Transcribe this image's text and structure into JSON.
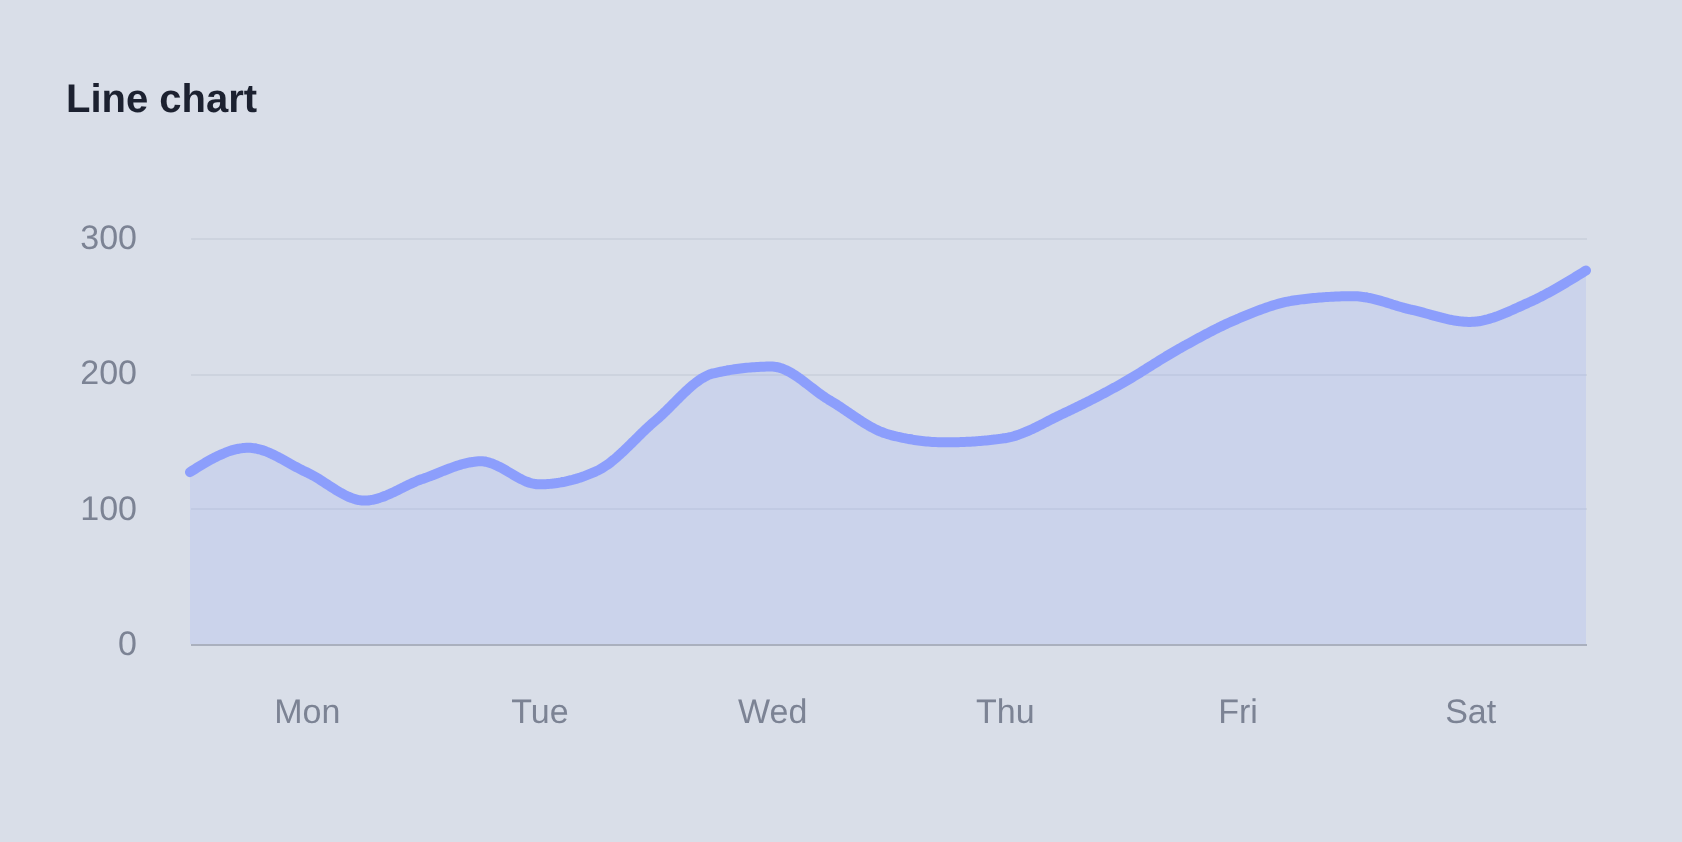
{
  "chart_data": {
    "type": "area",
    "title": "Line chart",
    "categories": [
      null,
      null,
      "Mon",
      null,
      null,
      null,
      "Tue",
      null,
      null,
      null,
      "Wed",
      null,
      null,
      null,
      "Thu",
      null,
      null,
      null,
      "Fri",
      null,
      null,
      null,
      "Sat",
      null,
      null
    ],
    "series": [
      {
        "color": "#8c9efc",
        "values": [
          127,
          145,
          127,
          106,
          122,
          135,
          118,
          128,
          165,
          200,
          205,
          180,
          155,
          149,
          152,
          170,
          192,
          218,
          240,
          254,
          257,
          247,
          238,
          252,
          276
        ]
      }
    ],
    "ylim": [
      0,
      300
    ],
    "yticks": [
      0,
      100,
      200,
      300
    ],
    "grid": "y"
  }
}
